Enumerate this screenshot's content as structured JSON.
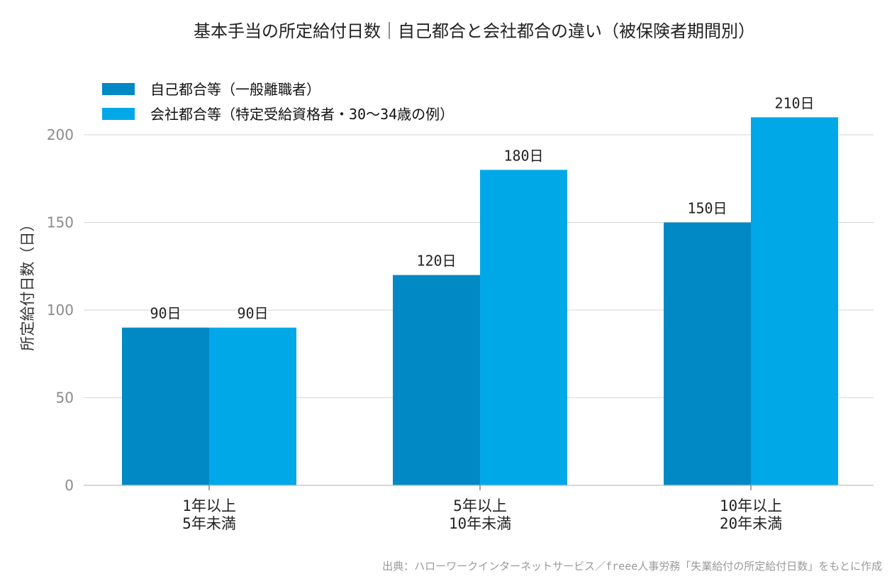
{
  "chart_data": {
    "type": "bar",
    "title": "基本手当の所定給付日数｜自己都合と会社都合の違い（被保険者期間別）",
    "ylabel": "所定給付日数（日）",
    "xlabel": "",
    "ylim": [
      0,
      220
    ],
    "yticks": [
      0,
      50,
      100,
      150,
      200
    ],
    "grid": true,
    "legend_position": "top-left",
    "categories": [
      [
        "1年以上",
        "5年未満"
      ],
      [
        "5年以上",
        "10年未満"
      ],
      [
        "10年以上",
        "20年未満"
      ]
    ],
    "series": [
      {
        "name": "自己都合等（一般離職者）",
        "values": [
          90,
          120,
          150
        ],
        "labels": [
          "90日",
          "120日",
          "150日"
        ],
        "color": "#0089c4"
      },
      {
        "name": "会社都合等（特定受給資格者・30〜34歳の例）",
        "values": [
          90,
          180,
          210
        ],
        "labels": [
          "90日",
          "180日",
          "210日"
        ],
        "color": "#00a8e8"
      }
    ],
    "source": "出典：ハローワークインターネットサービス／freee人事労務「失業給付の所定給付日数」をもとに作成"
  }
}
